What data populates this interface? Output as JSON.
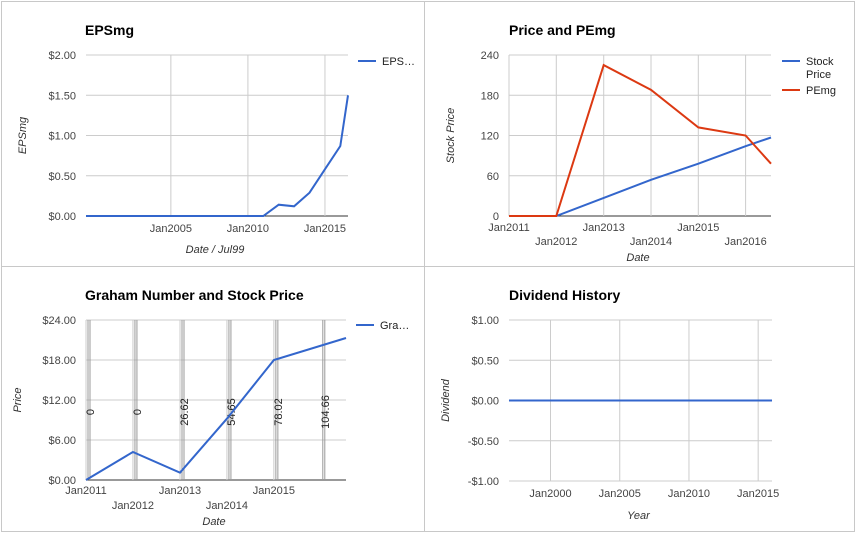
{
  "chart_data": [
    {
      "type": "line",
      "title": "EPSmg",
      "xlabel": "Date / Jul99",
      "ylabel": "EPSmg",
      "x_type": "date",
      "xlim": [
        "1999-07-01",
        "2016-06-30"
      ],
      "ylim": [
        0,
        2
      ],
      "x_ticks": [
        {
          "label": "Jan2005",
          "date": "2005-01-01"
        },
        {
          "label": "Jan2010",
          "date": "2010-01-01"
        },
        {
          "label": "Jan2015",
          "date": "2015-01-01"
        }
      ],
      "y_ticks": [
        {
          "label": "$0.00",
          "value": 0
        },
        {
          "label": "$0.50",
          "value": 0.5
        },
        {
          "label": "$1.00",
          "value": 1
        },
        {
          "label": "$1.50",
          "value": 1.5
        },
        {
          "label": "$2.00",
          "value": 2
        }
      ],
      "grid": true,
      "legend": "right",
      "series": [
        {
          "name": "EPS…",
          "color": "#3366cc",
          "points": [
            [
              "1999-07-01",
              0
            ],
            [
              "2010-12-31",
              0
            ],
            [
              "2011-12-31",
              0.14
            ],
            [
              "2012-12-31",
              0.12
            ],
            [
              "2013-12-31",
              0.29
            ],
            [
              "2014-12-31",
              0.58
            ],
            [
              "2015-12-31",
              0.87
            ],
            [
              "2016-06-30",
              1.5
            ]
          ]
        }
      ]
    },
    {
      "type": "line",
      "title": "Price and PEmg",
      "xlabel": "Date",
      "ylabel": "Stock Price",
      "x_type": "date",
      "xlim": [
        "2011-01-01",
        "2016-07-15"
      ],
      "ylim": [
        0,
        240
      ],
      "x_ticks": [
        {
          "label": "Jan2011",
          "date": "2011-01-01",
          "row": 0
        },
        {
          "label": "Jan2012",
          "date": "2012-01-01",
          "row": 1
        },
        {
          "label": "Jan2013",
          "date": "2013-01-01",
          "row": 0
        },
        {
          "label": "Jan2014",
          "date": "2014-01-01",
          "row": 1
        },
        {
          "label": "Jan2015",
          "date": "2015-01-01",
          "row": 0
        },
        {
          "label": "Jan2016",
          "date": "2016-01-01",
          "row": 1
        }
      ],
      "y_ticks": [
        {
          "label": "0",
          "value": 0
        },
        {
          "label": "60",
          "value": 60
        },
        {
          "label": "120",
          "value": 120
        },
        {
          "label": "180",
          "value": 180
        },
        {
          "label": "240",
          "value": 240
        }
      ],
      "grid": true,
      "legend": "right",
      "series": [
        {
          "name": "Stock Price",
          "color": "#3366cc",
          "points": [
            [
              "2011-01-01",
              0
            ],
            [
              "2012-01-01",
              0
            ],
            [
              "2013-01-01",
              27
            ],
            [
              "2014-01-01",
              54
            ],
            [
              "2015-01-01",
              78
            ],
            [
              "2016-01-01",
              104
            ],
            [
              "2016-07-15",
              117
            ]
          ]
        },
        {
          "name": "PEmg",
          "color": "#dc3912",
          "points": [
            [
              "2011-01-01",
              0
            ],
            [
              "2012-01-01",
              0
            ],
            [
              "2013-01-01",
              225
            ],
            [
              "2014-01-01",
              188
            ],
            [
              "2015-01-01",
              132
            ],
            [
              "2016-01-01",
              120
            ],
            [
              "2016-07-15",
              78
            ]
          ]
        }
      ]
    },
    {
      "type": "line",
      "title": "Graham Number and Stock Price",
      "xlabel": "Date",
      "ylabel": "Price",
      "x_type": "date",
      "xlim": [
        "2011-01-01",
        "2016-07-15"
      ],
      "ylim": [
        0,
        24
      ],
      "x_ticks": [
        {
          "label": "Jan2011",
          "date": "2011-01-01",
          "row": 0
        },
        {
          "label": "Jan2012",
          "date": "2012-01-01",
          "row": 1
        },
        {
          "label": "Jan2013",
          "date": "2013-01-01",
          "row": 0
        },
        {
          "label": "Jan2014",
          "date": "2014-01-01",
          "row": 1
        },
        {
          "label": "Jan2015",
          "date": "2015-01-01",
          "row": 0
        }
      ],
      "y_ticks": [
        {
          "label": "$0.00",
          "value": 0
        },
        {
          "label": "$6.00",
          "value": 6
        },
        {
          "label": "$12.00",
          "value": 12
        },
        {
          "label": "$18.00",
          "value": 18
        },
        {
          "label": "$24.00",
          "value": 24
        }
      ],
      "grid": true,
      "legend": "right",
      "annotations": [
        {
          "date": "2011-01-01",
          "text": "0"
        },
        {
          "date": "2012-01-01",
          "text": "0"
        },
        {
          "date": "2013-01-01",
          "text": "26.62"
        },
        {
          "date": "2014-01-01",
          "text": "54.65"
        },
        {
          "date": "2015-01-01",
          "text": "78.02"
        },
        {
          "date": "2016-01-01",
          "text": "104.66"
        }
      ],
      "series": [
        {
          "name": "Gra…",
          "color": "#3366cc",
          "points": [
            [
              "2011-01-01",
              0
            ],
            [
              "2012-01-01",
              4.2
            ],
            [
              "2013-01-01",
              1.1
            ],
            [
              "2014-01-01",
              9.2
            ],
            [
              "2015-01-01",
              18
            ],
            [
              "2016-07-15",
              21.3
            ]
          ]
        }
      ]
    },
    {
      "type": "line",
      "title": "Dividend History",
      "xlabel": "Year",
      "ylabel": "Dividend",
      "x_type": "date",
      "xlim": [
        "1997-01-01",
        "2016-01-01"
      ],
      "ylim": [
        -1,
        1
      ],
      "x_ticks": [
        {
          "label": "Jan2000",
          "date": "2000-01-01"
        },
        {
          "label": "Jan2005",
          "date": "2005-01-01"
        },
        {
          "label": "Jan2010",
          "date": "2010-01-01"
        },
        {
          "label": "Jan2015",
          "date": "2015-01-01"
        }
      ],
      "y_ticks": [
        {
          "label": "-$1.00",
          "value": -1
        },
        {
          "label": "-$0.50",
          "value": -0.5
        },
        {
          "label": "$0.00",
          "value": 0
        },
        {
          "label": "$0.50",
          "value": 0.5
        },
        {
          "label": "$1.00",
          "value": 1
        }
      ],
      "grid": true,
      "legend": "none",
      "series": [
        {
          "name": "",
          "color": "#3366cc",
          "points": [
            [
              "1997-01-01",
              0
            ],
            [
              "2016-01-01",
              0
            ]
          ]
        }
      ]
    }
  ]
}
